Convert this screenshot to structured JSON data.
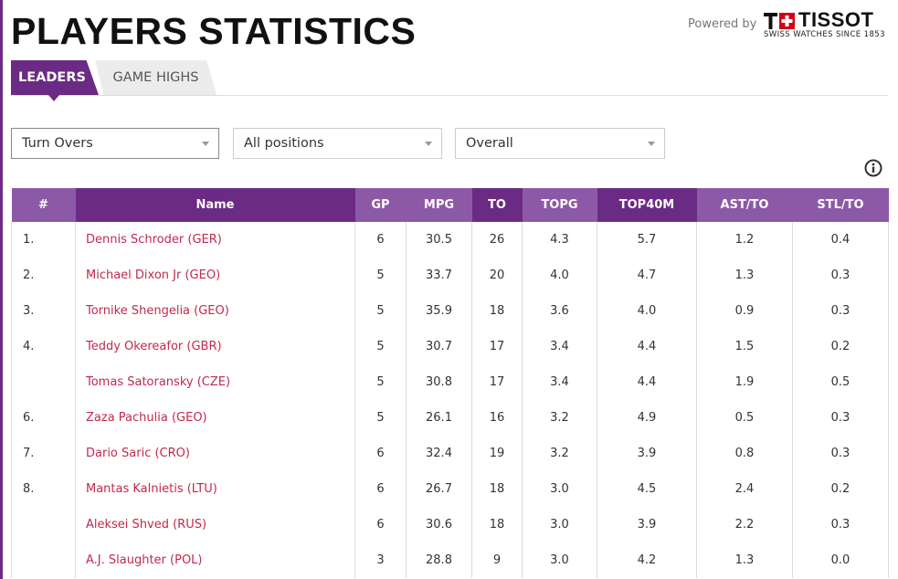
{
  "header": {
    "title": "PLAYERS STATISTICS",
    "powered_by": "Powered by",
    "sponsor": {
      "brand": "TISSOT",
      "tagline": "SWISS WATCHES SINCE 1853"
    }
  },
  "tabs": [
    {
      "label": "LEADERS",
      "active": true
    },
    {
      "label": "GAME HIGHS",
      "active": false
    }
  ],
  "filters": {
    "stat": "Turn Overs",
    "position": "All positions",
    "scope": "Overall"
  },
  "colors": {
    "accent": "#6b2a83",
    "accent_light": "#8c59a6",
    "link": "#c2294d"
  },
  "icons": {
    "info": "info-icon",
    "dropdown": "chevron-down-icon"
  },
  "table": {
    "columns": [
      "#",
      "Name",
      "GP",
      "MPG",
      "TO",
      "TOPG",
      "TOP40M",
      "AST/TO",
      "STL/TO"
    ],
    "rows": [
      {
        "rank": "1.",
        "name": "Dennis Schroder (GER)",
        "gp": "6",
        "mpg": "30.5",
        "to": "26",
        "topg": "4.3",
        "top40m": "5.7",
        "ast_to": "1.2",
        "stl_to": "0.4"
      },
      {
        "rank": "2.",
        "name": "Michael Dixon Jr (GEO)",
        "gp": "5",
        "mpg": "33.7",
        "to": "20",
        "topg": "4.0",
        "top40m": "4.7",
        "ast_to": "1.3",
        "stl_to": "0.3"
      },
      {
        "rank": "3.",
        "name": "Tornike Shengelia (GEO)",
        "gp": "5",
        "mpg": "35.9",
        "to": "18",
        "topg": "3.6",
        "top40m": "4.0",
        "ast_to": "0.9",
        "stl_to": "0.3"
      },
      {
        "rank": "4.",
        "name": "Teddy Okereafor (GBR)",
        "gp": "5",
        "mpg": "30.7",
        "to": "17",
        "topg": "3.4",
        "top40m": "4.4",
        "ast_to": "1.5",
        "stl_to": "0.2"
      },
      {
        "rank": "",
        "name": "Tomas Satoransky (CZE)",
        "gp": "5",
        "mpg": "30.8",
        "to": "17",
        "topg": "3.4",
        "top40m": "4.4",
        "ast_to": "1.9",
        "stl_to": "0.5"
      },
      {
        "rank": "6.",
        "name": "Zaza Pachulia (GEO)",
        "gp": "5",
        "mpg": "26.1",
        "to": "16",
        "topg": "3.2",
        "top40m": "4.9",
        "ast_to": "0.5",
        "stl_to": "0.3"
      },
      {
        "rank": "7.",
        "name": "Dario Saric (CRO)",
        "gp": "6",
        "mpg": "32.4",
        "to": "19",
        "topg": "3.2",
        "top40m": "3.9",
        "ast_to": "0.8",
        "stl_to": "0.3"
      },
      {
        "rank": "8.",
        "name": "Mantas Kalnietis (LTU)",
        "gp": "6",
        "mpg": "26.7",
        "to": "18",
        "topg": "3.0",
        "top40m": "4.5",
        "ast_to": "2.4",
        "stl_to": "0.2"
      },
      {
        "rank": "",
        "name": "Aleksei Shved (RUS)",
        "gp": "6",
        "mpg": "30.6",
        "to": "18",
        "topg": "3.0",
        "top40m": "3.9",
        "ast_to": "2.2",
        "stl_to": "0.3"
      },
      {
        "rank": "",
        "name": "A.J. Slaughter (POL)",
        "gp": "3",
        "mpg": "28.8",
        "to": "9",
        "topg": "3.0",
        "top40m": "4.2",
        "ast_to": "1.3",
        "stl_to": "0.0"
      }
    ]
  }
}
